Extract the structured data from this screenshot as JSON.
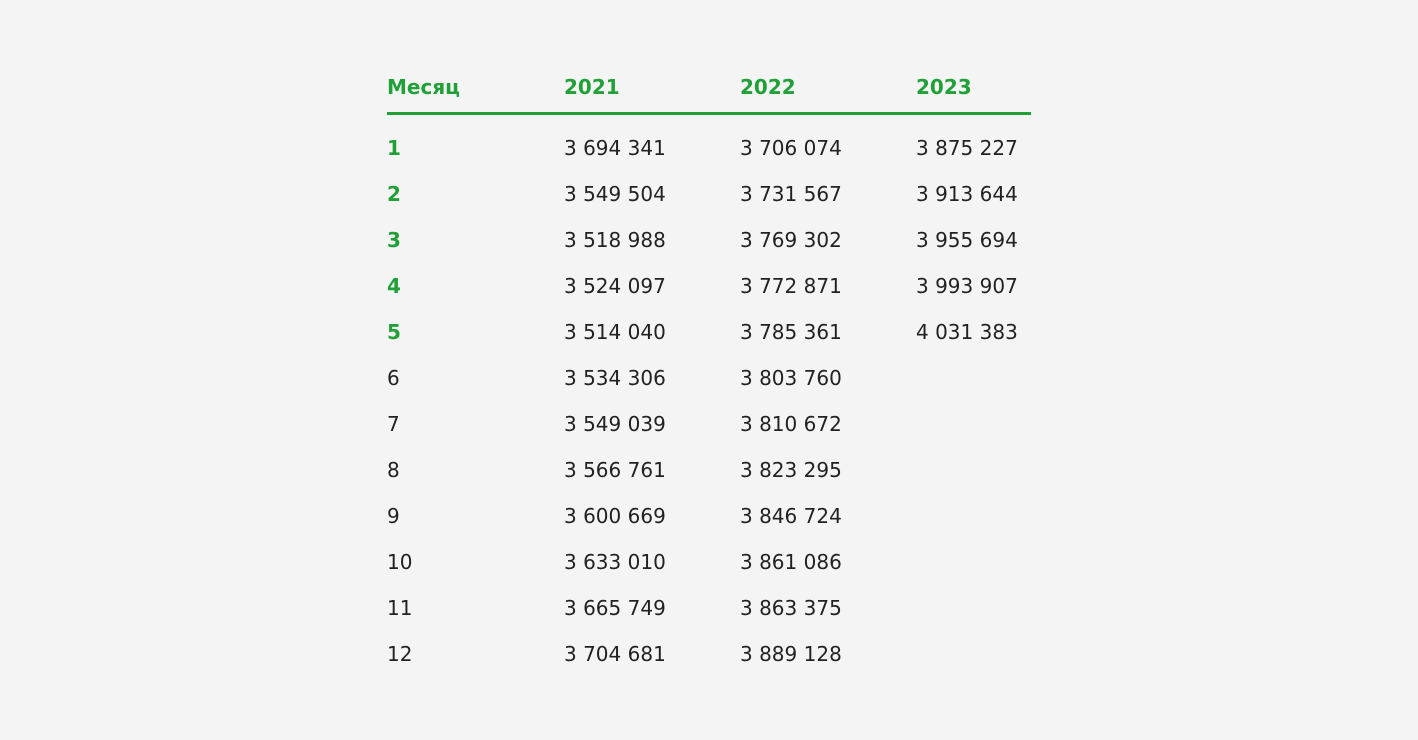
{
  "table": {
    "header": [
      "Месяц",
      "2021",
      "2022",
      "2023"
    ],
    "rows": [
      [
        "1",
        "3 694 341",
        "3 706 074",
        "3 875 227"
      ],
      [
        "2",
        "3 549 504",
        "3 731 567",
        "3 913 644"
      ],
      [
        "3",
        "3 518 988",
        "3 769 302",
        "3 955 694"
      ],
      [
        "4",
        "3 524 097",
        "3 772 871",
        "3 993 907"
      ],
      [
        "5",
        "3 514 040",
        "3 785 361",
        "4 031 383"
      ],
      [
        "6",
        "3 534 306",
        "3 803 760"
      ],
      [
        "7",
        "3 549 039",
        "3 810 672"
      ],
      [
        "8",
        "3 566 761",
        "3 823 295"
      ],
      [
        "9",
        "3 600 669",
        "3 846 724"
      ],
      [
        "10",
        "3 633 010",
        "3 861 086"
      ],
      [
        "11",
        "3 665 749",
        "3 863 375"
      ],
      [
        "12",
        "3 704 681",
        "3 889 128"
      ]
    ]
  }
}
